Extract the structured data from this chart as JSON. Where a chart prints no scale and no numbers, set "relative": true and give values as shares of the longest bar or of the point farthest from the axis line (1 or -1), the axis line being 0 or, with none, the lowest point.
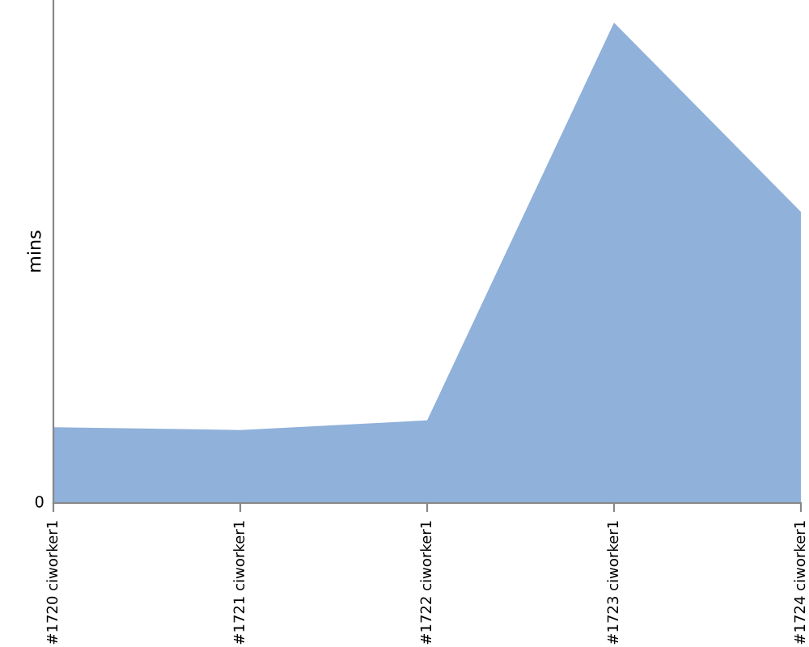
{
  "chart_data": {
    "type": "area",
    "ylabel": "mins",
    "relative": true,
    "categories": [
      "#1720 ciworker1",
      "#1721 ciworker1",
      "#1722 ciworker1",
      "#1723 ciworker1",
      "#1724 ciworker1"
    ],
    "series": [
      {
        "color": "#8fb1da",
        "values": [
          0.158,
          0.152,
          0.172,
          1,
          0.606
        ]
      }
    ],
    "annotations": [
      "0"
    ],
    "grid": false,
    "legend": false
  }
}
